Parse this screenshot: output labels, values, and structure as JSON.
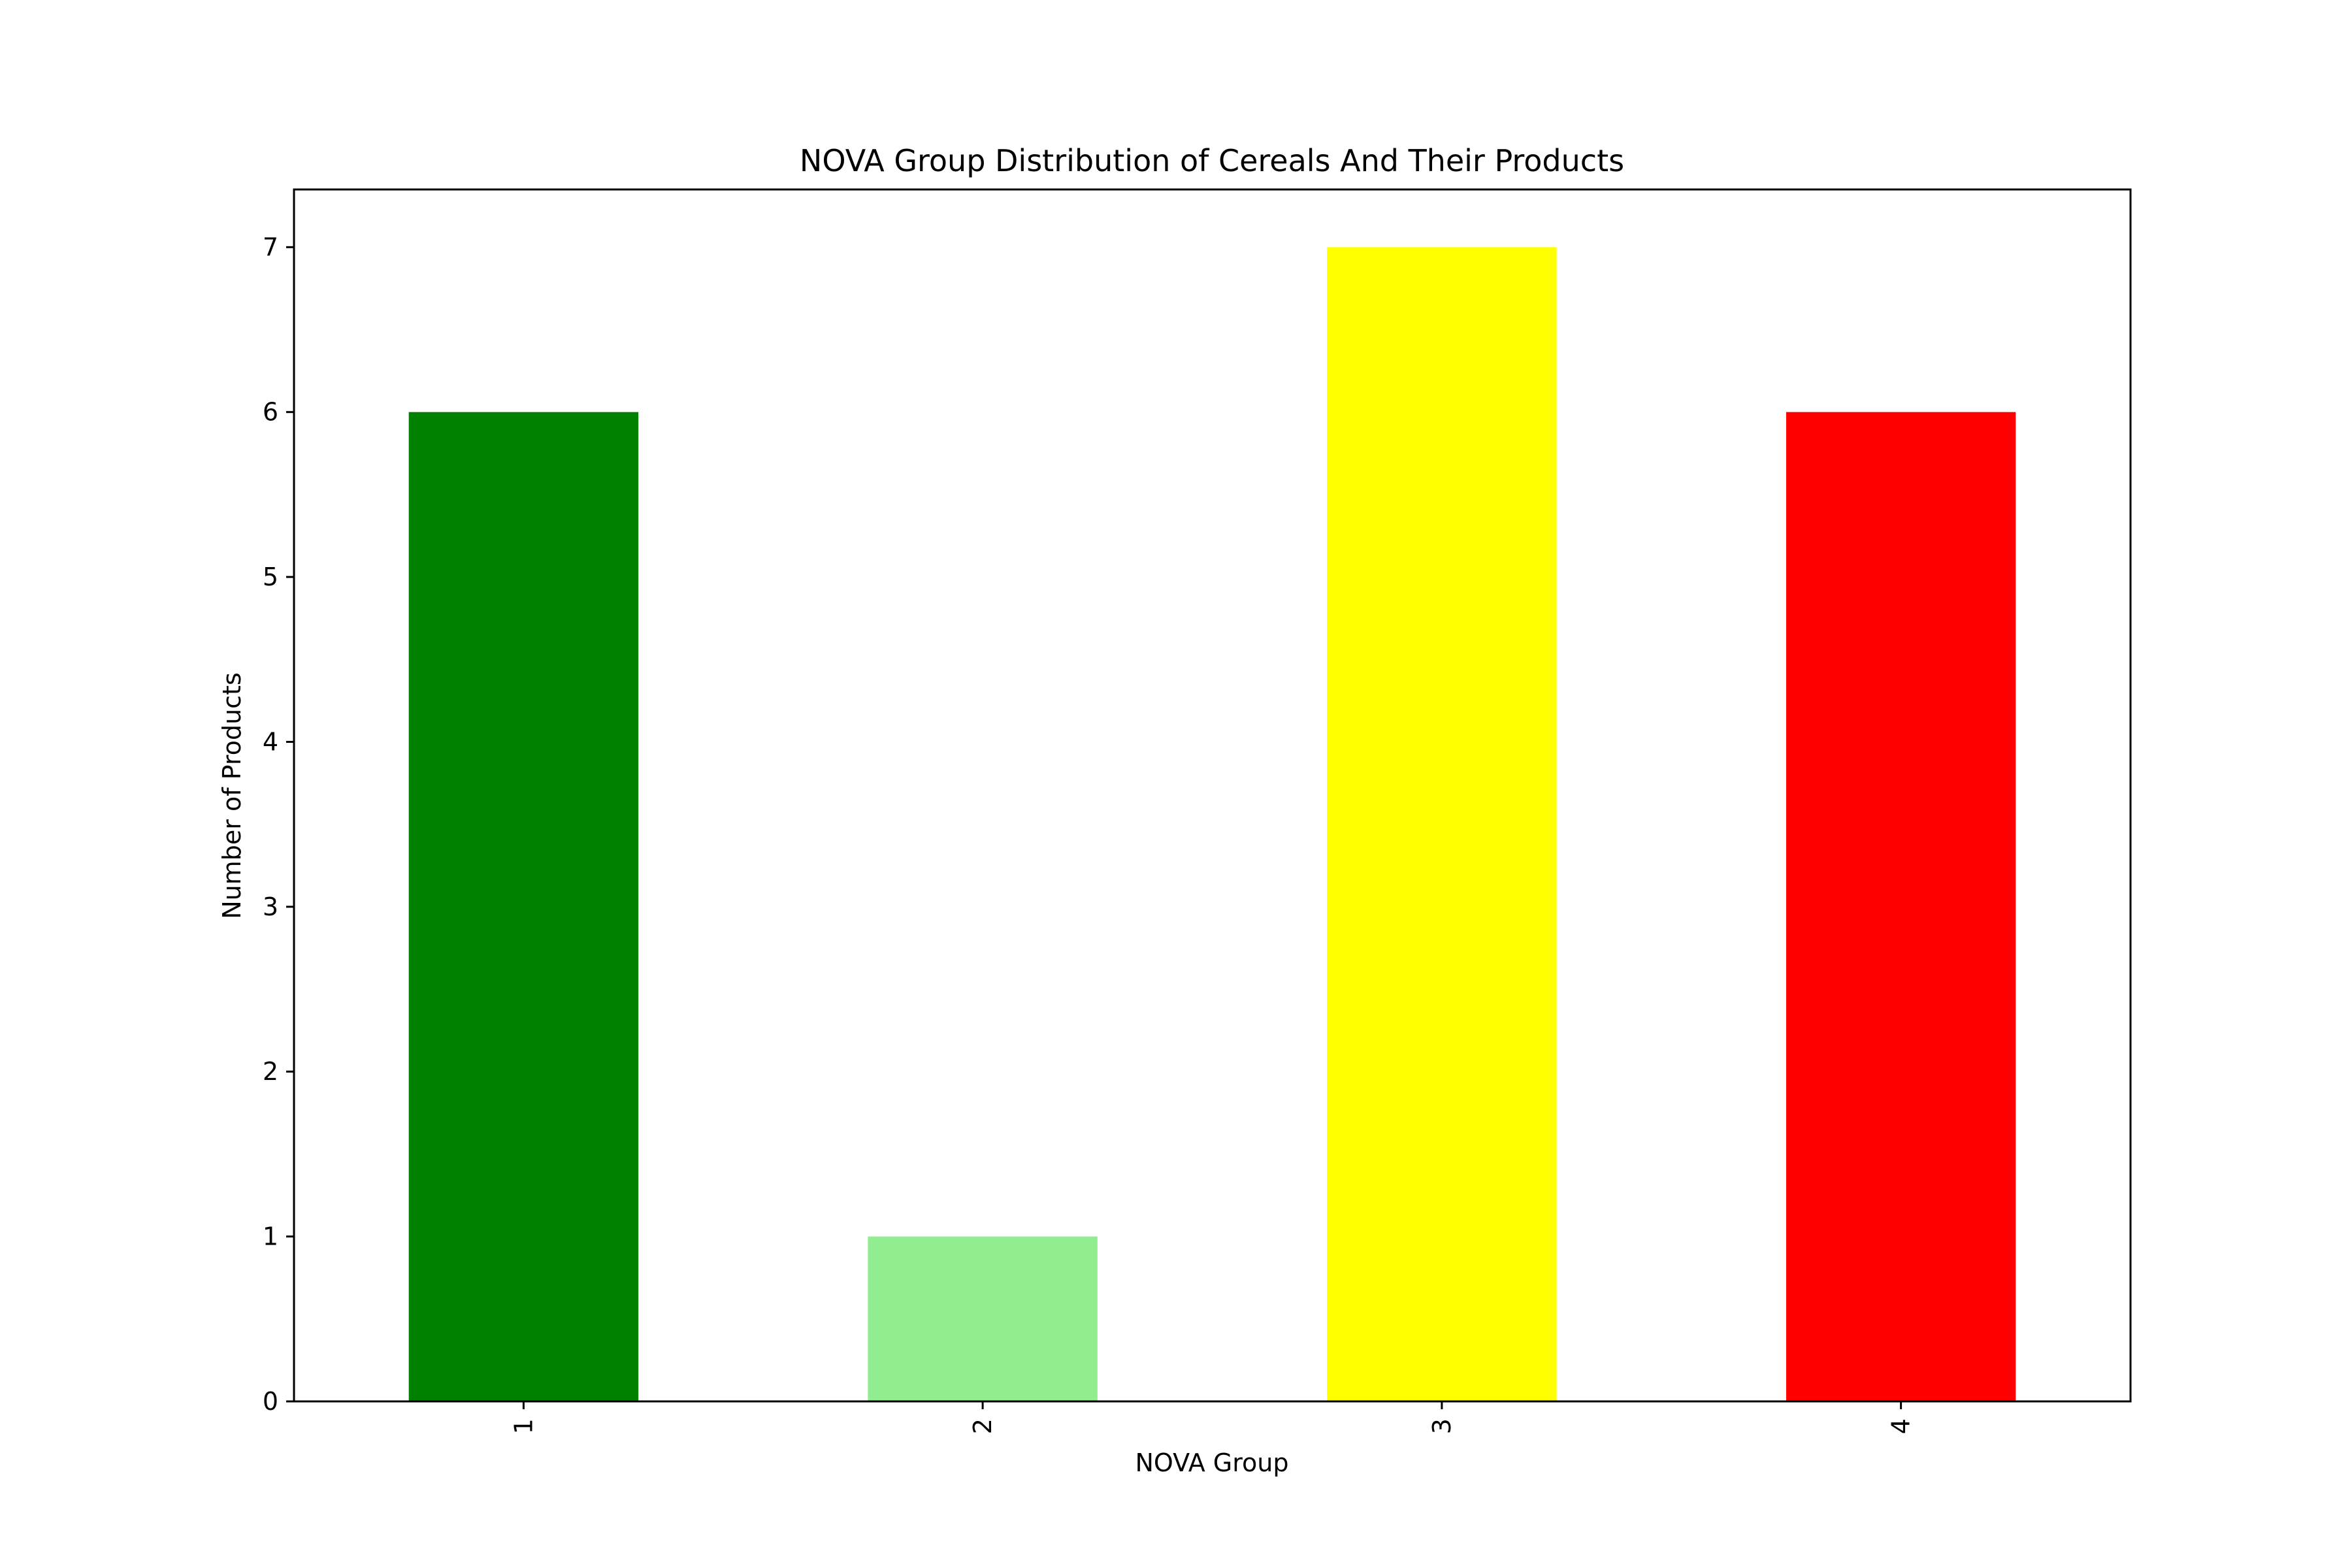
{
  "chart_data": {
    "type": "bar",
    "title": "NOVA Group Distribution of Cereals And Their Products",
    "xlabel": "NOVA Group",
    "ylabel": "Number of Products",
    "categories": [
      "1",
      "2",
      "3",
      "4"
    ],
    "values": [
      6,
      1,
      7,
      6
    ],
    "colors": [
      "#008000",
      "#90ee90",
      "#ffff00",
      "#ff0000"
    ],
    "ylim": [
      0,
      7.35
    ],
    "yticks": [
      0,
      1,
      2,
      3,
      4,
      5,
      6,
      7
    ],
    "x_tick_rotation": "vertical",
    "grid": false,
    "legend": "none"
  }
}
